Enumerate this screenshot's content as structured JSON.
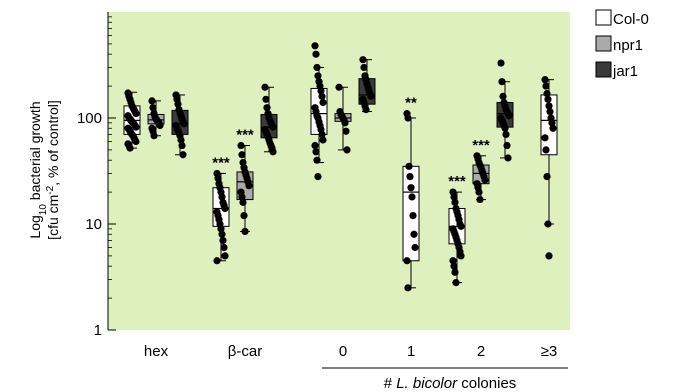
{
  "chart_data": {
    "type": "box",
    "ylabel_line1_pre": "Log",
    "ylabel_line1_sub": "10",
    "ylabel_line1_post": " bacterial growth",
    "ylabel_line2_pre": "[cfu cm",
    "ylabel_line2_sup": "-2",
    "ylabel_line2_post": ", % of control]",
    "yscale": "log",
    "ylim": [
      1,
      1000
    ],
    "yticks": [
      {
        "value": 1,
        "label": "1"
      },
      {
        "value": 10,
        "label": "10"
      },
      {
        "value": 100,
        "label": "100"
      }
    ],
    "background_color": "#dff0bf",
    "categories": [
      "hex",
      "β-car",
      "0",
      "1",
      "2",
      "≥3"
    ],
    "group_label_prefix": "# ",
    "group_label_italic": "L. bicolor",
    "group_label_suffix": " colonies",
    "series": [
      {
        "name": "Col-0",
        "color": "#ffffff"
      },
      {
        "name": "npr1",
        "color": "#aaaaaa"
      },
      {
        "name": "jar1",
        "color": "#3a3a3a"
      }
    ],
    "boxes": [
      {
        "category": "hex",
        "series": "Col-0",
        "whisker_low": 52,
        "q1": 70,
        "median": 95,
        "q3": 130,
        "whisker_high": 175,
        "points": [
          172,
          160,
          150,
          140,
          130,
          125,
          120,
          115,
          110,
          105,
          100,
          98,
          95,
          92,
          90,
          88,
          85,
          82,
          80,
          78,
          75,
          72,
          70,
          68,
          65,
          62,
          60,
          57,
          55,
          52
        ]
      },
      {
        "category": "hex",
        "series": "npr1",
        "whisker_low": 68,
        "q1": 88,
        "median": 96,
        "q3": 108,
        "whisker_high": 145,
        "points": [
          145,
          125,
          110,
          102,
          98,
          95,
          92,
          90,
          85,
          80,
          75,
          68
        ]
      },
      {
        "category": "hex",
        "series": "jar1",
        "whisker_low": 45,
        "q1": 70,
        "median": 88,
        "q3": 118,
        "whisker_high": 165,
        "points": [
          165,
          150,
          135,
          120,
          112,
          105,
          98,
          92,
          88,
          85,
          80,
          76,
          72,
          68,
          62,
          55,
          45
        ]
      },
      {
        "category": "β-car",
        "series": "Col-0",
        "whisker_low": 4.5,
        "q1": 9.5,
        "median": 14,
        "q3": 22,
        "whisker_high": 30,
        "points": [
          30,
          27,
          24,
          22,
          20,
          18,
          16,
          15,
          14,
          13,
          12,
          11,
          10,
          9,
          8,
          7,
          6,
          5,
          4.5
        ]
      },
      {
        "category": "β-car",
        "series": "npr1",
        "whisker_low": 8.5,
        "q1": 17,
        "median": 25,
        "q3": 31,
        "whisker_high": 55,
        "points": [
          55,
          45,
          38,
          34,
          31,
          29,
          27,
          25,
          23,
          20,
          18,
          16,
          12,
          8.5
        ]
      },
      {
        "category": "β-car",
        "series": "jar1",
        "whisker_low": 48,
        "q1": 65,
        "median": 82,
        "q3": 108,
        "whisker_high": 195,
        "points": [
          195,
          150,
          125,
          110,
          100,
          95,
          90,
          85,
          82,
          78,
          74,
          70,
          66,
          62,
          58,
          55,
          52,
          48
        ]
      },
      {
        "category": "0",
        "series": "Col-0",
        "whisker_low": 38,
        "q1": 70,
        "median": 110,
        "q3": 190,
        "whisker_high": 300,
        "points": [
          480,
          400,
          300,
          250,
          220,
          200,
          180,
          160,
          140,
          125,
          115,
          105,
          100,
          92,
          85,
          78,
          70,
          62,
          55,
          48,
          40,
          28
        ]
      },
      {
        "category": "0",
        "series": "npr1",
        "whisker_low": 50,
        "q1": 93,
        "median": 100,
        "q3": 110,
        "whisker_high": 195,
        "points": [
          195,
          115,
          108,
          104,
          100,
          96,
          90,
          75,
          50
        ]
      },
      {
        "category": "0",
        "series": "jar1",
        "whisker_low": 115,
        "q1": 135,
        "median": 165,
        "q3": 235,
        "whisker_high": 355,
        "points": [
          355,
          300,
          250,
          230,
          210,
          195,
          180,
          170,
          160,
          150,
          140,
          130,
          120
        ]
      },
      {
        "category": "1",
        "series": "Col-0",
        "whisker_low": 2.5,
        "q1": 4.5,
        "median": 20,
        "q3": 35,
        "whisker_high": 100,
        "points": [
          110,
          100,
          35,
          28,
          22,
          18,
          12,
          8,
          6,
          4.5,
          2.5
        ]
      },
      {
        "category": "2",
        "series": "Col-0",
        "whisker_low": 2.8,
        "q1": 6.5,
        "median": 9.5,
        "q3": 14,
        "whisker_high": 20,
        "points": [
          20,
          18,
          16,
          14,
          13,
          12,
          11,
          10,
          9.5,
          9,
          8.5,
          8,
          7.5,
          7,
          6.5,
          6,
          5.5,
          5,
          4.5,
          4,
          3.5,
          2.8
        ]
      },
      {
        "category": "2",
        "series": "npr1",
        "whisker_low": 17,
        "q1": 24,
        "median": 30,
        "q3": 36,
        "whisker_high": 44,
        "points": [
          44,
          41,
          38,
          36,
          34,
          32,
          30,
          28,
          26,
          24,
          22,
          20,
          17
        ]
      },
      {
        "category": "2",
        "series": "jar1",
        "whisker_low": 42,
        "q1": 82,
        "median": 110,
        "q3": 140,
        "whisker_high": 220,
        "points": [
          330,
          220,
          160,
          140,
          130,
          120,
          115,
          110,
          105,
          100,
          95,
          90,
          85,
          80,
          70,
          55,
          42
        ]
      },
      {
        "category": "≥3",
        "series": "Col-0",
        "whisker_low": 10,
        "q1": 45,
        "median": 95,
        "q3": 165,
        "whisker_high": 230,
        "points": [
          230,
          200,
          170,
          150,
          130,
          115,
          100,
          90,
          80,
          65,
          50,
          28,
          10,
          5
        ]
      }
    ],
    "significance": [
      {
        "category": "β-car",
        "series": "Col-0",
        "label": "***"
      },
      {
        "category": "β-car",
        "series": "npr1",
        "label": "***"
      },
      {
        "category": "1",
        "series": "Col-0",
        "label": "**"
      },
      {
        "category": "2",
        "series": "Col-0",
        "label": "***"
      },
      {
        "category": "2",
        "series": "npr1",
        "label": "***"
      }
    ]
  }
}
